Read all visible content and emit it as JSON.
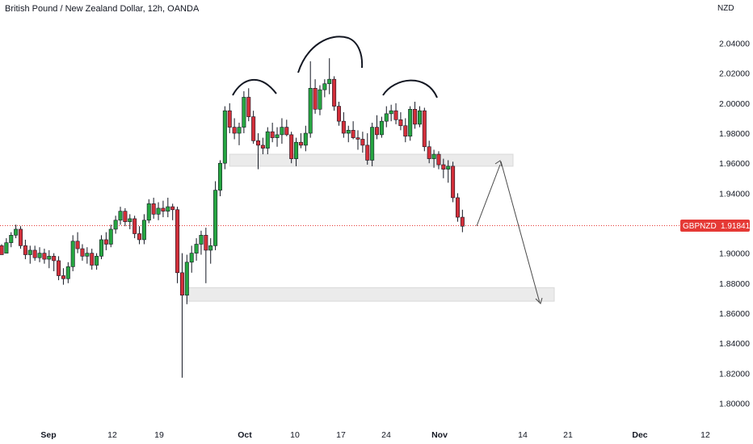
{
  "header": {
    "title": "British Pound / New Zealand Dollar, 12h, OANDA"
  },
  "axis": {
    "currency": "NZD"
  },
  "price_badge": {
    "symbol": "GBPNZD",
    "value": "1.91841"
  },
  "colors": {
    "up": "#26a641",
    "down": "#d32f3a",
    "grid_price": "#e53935",
    "badge": "#e53935",
    "zone": "#d9d9d9"
  },
  "chart_data": {
    "type": "candlestick",
    "title": "British Pound / New Zealand Dollar, 12h, OANDA",
    "ylim": [
      1.79,
      2.05
    ],
    "yticks": [
      "2.04000",
      "2.02000",
      "2.00000",
      "1.98000",
      "1.96000",
      "1.94000",
      "1.92000",
      "1.90000",
      "1.88000",
      "1.86000",
      "1.84000",
      "1.82000",
      "1.80000"
    ],
    "xticks": [
      {
        "label": "Sep",
        "bold": true
      },
      {
        "label": "12",
        "bold": false
      },
      {
        "label": "19",
        "bold": false
      },
      {
        "label": "Oct",
        "bold": true
      },
      {
        "label": "10",
        "bold": false
      },
      {
        "label": "17",
        "bold": false
      },
      {
        "label": "24",
        "bold": false
      },
      {
        "label": "Nov",
        "bold": true
      },
      {
        "label": "14",
        "bold": false
      },
      {
        "label": "21",
        "bold": false
      },
      {
        "label": "Dec",
        "bold": true
      },
      {
        "label": "12",
        "bold": false
      }
    ],
    "last_price": 1.91841,
    "zones": [
      {
        "from_bar": 49,
        "to": "Nov 14",
        "low": 1.958,
        "high": 1.966
      },
      {
        "from_bar": 40,
        "to": "Nov 21",
        "low": 1.868,
        "high": 1.877
      }
    ],
    "candles": [
      [
        1.905,
        1.906,
        1.9,
        1.899
      ],
      [
        1.9,
        1.91,
        1.901,
        1.907
      ],
      [
        1.907,
        1.914,
        1.904,
        1.912
      ],
      [
        1.912,
        1.919,
        1.91,
        1.916
      ],
      [
        1.916,
        1.918,
        1.903,
        1.905
      ],
      [
        1.905,
        1.909,
        1.896,
        1.899
      ],
      [
        1.899,
        1.905,
        1.893,
        1.902
      ],
      [
        1.902,
        1.905,
        1.895,
        1.897
      ],
      [
        1.897,
        1.904,
        1.894,
        1.9
      ],
      [
        1.9,
        1.903,
        1.893,
        1.896
      ],
      [
        1.896,
        1.902,
        1.89,
        1.898
      ],
      [
        1.898,
        1.9,
        1.888,
        1.895
      ],
      [
        1.895,
        1.898,
        1.882,
        1.885
      ],
      [
        1.885,
        1.89,
        1.879,
        1.883
      ],
      [
        1.883,
        1.894,
        1.88,
        1.891
      ],
      [
        1.891,
        1.912,
        1.888,
        1.908
      ],
      [
        1.908,
        1.914,
        1.9,
        1.903
      ],
      [
        1.903,
        1.906,
        1.895,
        1.898
      ],
      [
        1.898,
        1.904,
        1.893,
        1.9
      ],
      [
        1.9,
        1.903,
        1.889,
        1.892
      ],
      [
        1.892,
        1.9,
        1.889,
        1.898
      ],
      [
        1.898,
        1.912,
        1.896,
        1.909
      ],
      [
        1.909,
        1.914,
        1.902,
        1.906
      ],
      [
        1.906,
        1.919,
        1.904,
        1.916
      ],
      [
        1.916,
        1.925,
        1.913,
        1.922
      ],
      [
        1.922,
        1.931,
        1.919,
        1.928
      ],
      [
        1.928,
        1.93,
        1.918,
        1.921
      ],
      [
        1.921,
        1.926,
        1.916,
        1.923
      ],
      [
        1.923,
        1.925,
        1.91,
        1.913
      ],
      [
        1.913,
        1.918,
        1.906,
        1.909
      ],
      [
        1.909,
        1.926,
        1.906,
        1.922
      ],
      [
        1.922,
        1.936,
        1.92,
        1.933
      ],
      [
        1.933,
        1.937,
        1.923,
        1.926
      ],
      [
        1.926,
        1.934,
        1.922,
        1.93
      ],
      [
        1.93,
        1.935,
        1.924,
        1.928
      ],
      [
        1.928,
        1.937,
        1.924,
        1.931
      ],
      [
        1.931,
        1.933,
        1.922,
        1.929
      ],
      [
        1.929,
        1.931,
        1.88,
        1.887
      ],
      [
        1.887,
        1.9,
        1.817,
        1.872
      ],
      [
        1.872,
        1.899,
        1.866,
        1.894
      ],
      [
        1.894,
        1.905,
        1.887,
        1.9
      ],
      [
        1.9,
        1.91,
        1.895,
        1.906
      ],
      [
        1.906,
        1.915,
        1.899,
        1.912
      ],
      [
        1.912,
        1.917,
        1.88,
        1.902
      ],
      [
        1.902,
        1.91,
        1.893,
        1.905
      ],
      [
        1.905,
        1.948,
        1.902,
        1.942
      ],
      [
        1.942,
        1.962,
        1.938,
        1.96
      ],
      [
        1.96,
        1.998,
        1.956,
        1.995
      ],
      [
        1.995,
        2.0,
        1.98,
        1.984
      ],
      [
        1.984,
        1.99,
        1.976,
        1.98
      ],
      [
        1.98,
        1.987,
        1.972,
        1.984
      ],
      [
        1.984,
        2.008,
        1.98,
        2.004
      ],
      [
        2.004,
        2.01,
        1.988,
        1.991
      ],
      [
        1.991,
        1.995,
        1.973,
        1.975
      ],
      [
        1.975,
        1.98,
        1.956,
        1.972
      ],
      [
        1.972,
        1.977,
        1.966,
        1.97
      ],
      [
        1.97,
        1.984,
        1.966,
        1.981
      ],
      [
        1.981,
        1.987,
        1.974,
        1.977
      ],
      [
        1.977,
        1.984,
        1.971,
        1.979
      ],
      [
        1.979,
        1.99,
        1.973,
        1.984
      ],
      [
        1.984,
        1.989,
        1.978,
        1.979
      ],
      [
        1.979,
        1.981,
        1.96,
        1.963
      ],
      [
        1.963,
        1.977,
        1.958,
        1.974
      ],
      [
        1.974,
        1.98,
        1.97,
        1.972
      ],
      [
        1.972,
        1.985,
        1.968,
        1.98
      ],
      [
        1.98,
        2.028,
        1.977,
        2.01
      ],
      [
        2.01,
        2.016,
        1.993,
        1.996
      ],
      [
        1.996,
        2.012,
        1.992,
        2.009
      ],
      [
        2.009,
        2.016,
        2.004,
        2.013
      ],
      [
        2.013,
        2.03,
        2.006,
        2.016
      ],
      [
        2.016,
        2.018,
        1.995,
        1.998
      ],
      [
        1.998,
        2.001,
        1.985,
        1.988
      ],
      [
        1.988,
        1.994,
        1.977,
        1.98
      ],
      [
        1.98,
        1.985,
        1.974,
        1.982
      ],
      [
        1.982,
        1.988,
        1.976,
        1.977
      ],
      [
        1.977,
        1.982,
        1.969,
        1.976
      ],
      [
        1.976,
        1.981,
        1.967,
        1.972
      ],
      [
        1.972,
        1.98,
        1.959,
        1.962
      ],
      [
        1.962,
        1.987,
        1.958,
        1.984
      ],
      [
        1.984,
        1.992,
        1.976,
        1.979
      ],
      [
        1.979,
        1.991,
        1.977,
        1.988
      ],
      [
        1.988,
        1.998,
        1.984,
        1.993
      ],
      [
        1.993,
        1.999,
        1.988,
        1.995
      ],
      [
        1.995,
        2.0,
        1.986,
        1.989
      ],
      [
        1.989,
        1.994,
        1.982,
        1.985
      ],
      [
        1.985,
        1.99,
        1.974,
        1.978
      ],
      [
        1.978,
        1.998,
        1.975,
        1.996
      ],
      [
        1.996,
        2.001,
        1.983,
        1.986
      ],
      [
        1.986,
        1.998,
        1.984,
        1.995
      ],
      [
        1.995,
        1.997,
        1.968,
        1.971
      ],
      [
        1.971,
        1.975,
        1.96,
        1.963
      ],
      [
        1.963,
        1.969,
        1.957,
        1.966
      ],
      [
        1.966,
        1.968,
        1.956,
        1.959
      ],
      [
        1.959,
        1.963,
        1.95,
        1.956
      ],
      [
        1.956,
        1.962,
        1.947,
        1.958
      ],
      [
        1.958,
        1.961,
        1.934,
        1.937
      ],
      [
        1.937,
        1.94,
        1.921,
        1.924
      ],
      [
        1.924,
        1.929,
        1.914,
        1.918
      ]
    ]
  }
}
